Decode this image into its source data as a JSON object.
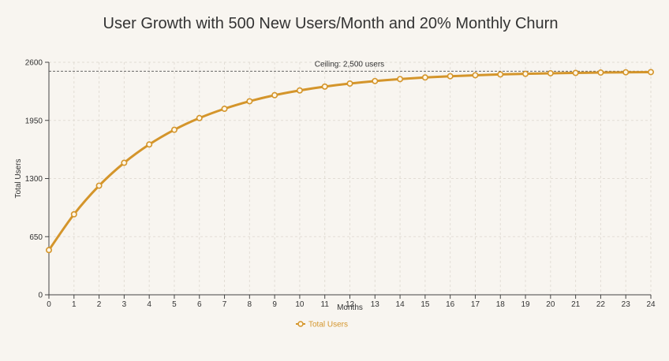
{
  "chart_data": {
    "type": "line",
    "title": "User Growth with 500 New Users/Month and 20% Monthly Churn",
    "xlabel": "Months",
    "ylabel": "Total Users",
    "x": [
      0,
      1,
      2,
      3,
      4,
      5,
      6,
      7,
      8,
      9,
      10,
      11,
      12,
      13,
      14,
      15,
      16,
      17,
      18,
      19,
      20,
      21,
      22,
      23,
      24
    ],
    "xticks": [
      "0",
      "1",
      "2",
      "3",
      "4",
      "5",
      "6",
      "7",
      "8",
      "9",
      "10",
      "11",
      "12",
      "13",
      "14",
      "15",
      "16",
      "17",
      "18",
      "19",
      "20",
      "21",
      "22",
      "23",
      "24"
    ],
    "xlim": [
      0,
      24
    ],
    "ylim": [
      0,
      2600
    ],
    "yticks": [
      0,
      650,
      1300,
      1950,
      2600
    ],
    "grid": true,
    "legend_position": "bottom-center",
    "series": [
      {
        "name": "Total Users",
        "color": "#d4952b",
        "values": [
          500,
          900,
          1220,
          1476,
          1681,
          1845,
          1976,
          2080,
          2164,
          2232,
          2285,
          2328,
          2362,
          2390,
          2412,
          2430,
          2444,
          2455,
          2464,
          2471,
          2477,
          2481,
          2485,
          2488,
          2490
        ]
      }
    ],
    "reference_line": {
      "value": 2500,
      "label": "Ceiling: 2,500 users",
      "color": "#666666"
    }
  }
}
